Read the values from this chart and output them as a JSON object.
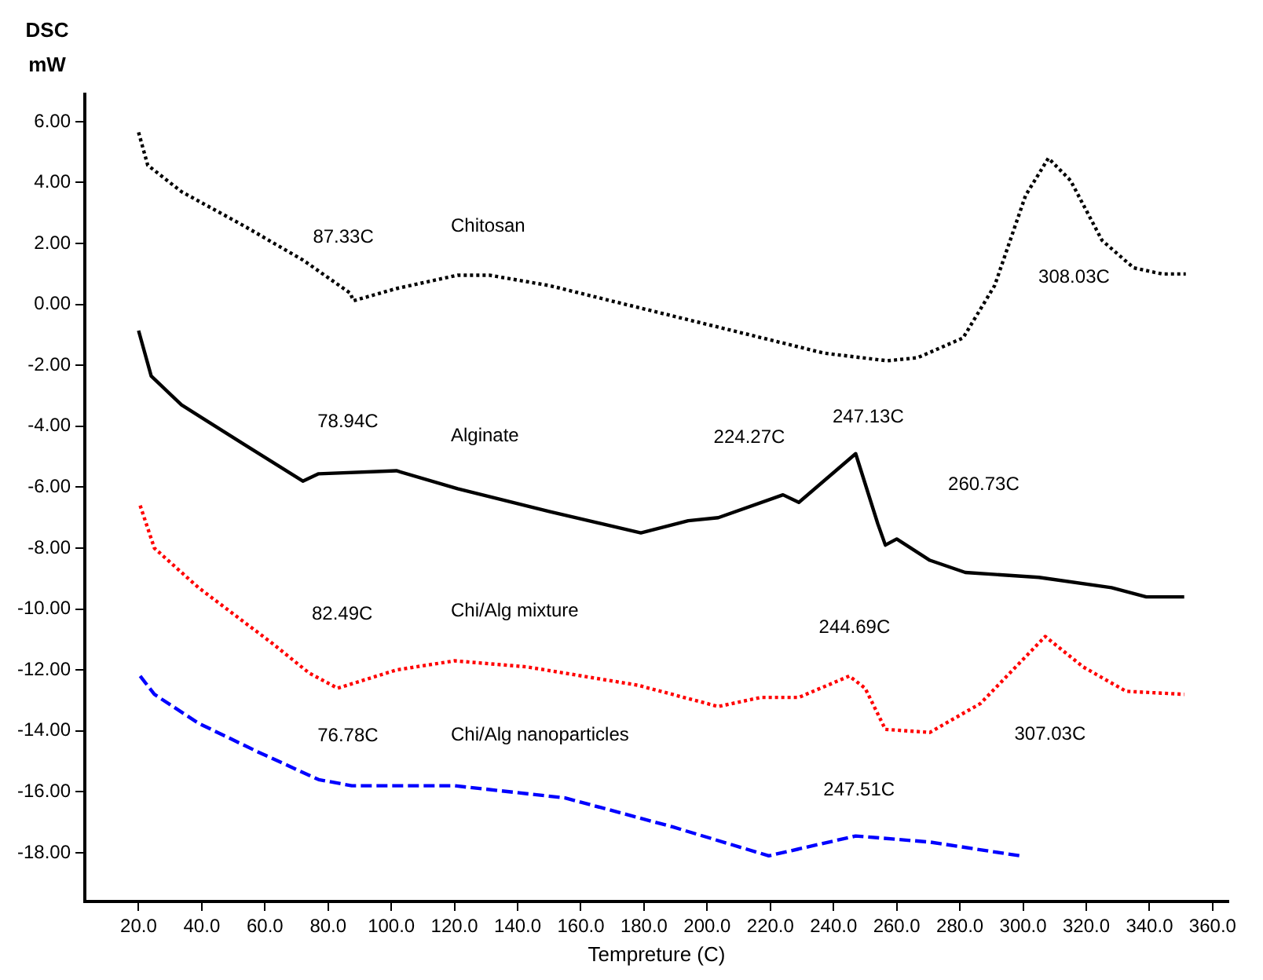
{
  "chart_data": {
    "type": "line",
    "xlabel": "Tempreture (C)",
    "ylabel": "DSC mW",
    "xlim": [
      3,
      365
    ],
    "xticks": [
      {
        "value": 20,
        "label": "20.0"
      },
      {
        "value": 40,
        "label": "40.0"
      },
      {
        "value": 60,
        "label": "60.0"
      },
      {
        "value": 80,
        "label": "80.0"
      },
      {
        "value": 100,
        "label": "100.0"
      },
      {
        "value": 120,
        "label": "120.0"
      },
      {
        "value": 140,
        "label": "140.0"
      },
      {
        "value": 160,
        "label": "160.0"
      },
      {
        "value": 180,
        "label": "180.0"
      },
      {
        "value": 200,
        "label": "200.0"
      },
      {
        "value": 220,
        "label": "220.0"
      },
      {
        "value": 240,
        "label": "240.0"
      },
      {
        "value": 260,
        "label": "260.0"
      },
      {
        "value": 280,
        "label": "280.0"
      },
      {
        "value": 300,
        "label": "300.0"
      },
      {
        "value": 320,
        "label": "320.0"
      },
      {
        "value": 340,
        "label": "340.0"
      },
      {
        "value": 360,
        "label": "360.0"
      }
    ],
    "ylim": [
      -19.6,
      6.9
    ],
    "yticks": [
      {
        "value": 6,
        "label": "6.00"
      },
      {
        "value": 4,
        "label": "4.00"
      },
      {
        "value": 2,
        "label": "2.00"
      },
      {
        "value": 0,
        "label": "0.00"
      },
      {
        "value": -2,
        "label": "-2.00"
      },
      {
        "value": -4,
        "label": "-4.00"
      },
      {
        "value": -6,
        "label": "-6.00"
      },
      {
        "value": -8,
        "label": "-8.00"
      },
      {
        "value": -10,
        "label": "-10.00"
      },
      {
        "value": -12,
        "label": "-12.00"
      },
      {
        "value": -14,
        "label": "-14.00"
      },
      {
        "value": -16,
        "label": "-16.00"
      },
      {
        "value": -18,
        "label": "-18.00"
      }
    ],
    "grid": false,
    "legend": false,
    "marker": "none",
    "series": [
      {
        "name": "Chitosan",
        "color": "#000000",
        "line_style": "dotted",
        "x": [
          20,
          22.9,
          33.6,
          53,
          72,
          87,
          88,
          101.6,
          121,
          131,
          150,
          169.5,
          208,
          237,
          257,
          266.6,
          281,
          291,
          300.8,
          308,
          315,
          325,
          335,
          344,
          351.5
        ],
        "values": [
          5.65,
          4.57,
          3.7,
          2.6,
          1.46,
          0.37,
          0.12,
          0.52,
          0.96,
          0.96,
          0.62,
          0.12,
          -0.86,
          -1.6,
          -1.85,
          -1.75,
          -1.1,
          0.62,
          3.58,
          4.8,
          4.07,
          2.1,
          1.2,
          1.0,
          1.0
        ]
      },
      {
        "name": "Alginate",
        "color": "#000000",
        "line_style": "solid",
        "x": [
          20,
          24,
          33.6,
          53,
          72,
          77,
          101.6,
          121,
          150,
          179,
          194,
          203.5,
          224,
          229,
          247,
          254,
          256.4,
          260,
          270.5,
          281.7,
          305,
          328,
          339,
          351
        ],
        "values": [
          -0.86,
          -2.35,
          -3.3,
          -4.57,
          -5.8,
          -5.56,
          -5.46,
          -6.05,
          -6.8,
          -7.5,
          -7.1,
          -7.0,
          -6.25,
          -6.5,
          -4.9,
          -7.2,
          -7.9,
          -7.7,
          -8.4,
          -8.8,
          -8.96,
          -9.3,
          -9.6,
          -9.6
        ]
      },
      {
        "name": "Chi/Alg mixture",
        "color": "#ff0000",
        "line_style": "dotted",
        "x": [
          20.5,
          25,
          39,
          62,
          74,
          83,
          101.6,
          120,
          143,
          178,
          203.5,
          217,
          229,
          245,
          250,
          256.4,
          270.5,
          286.5,
          307,
          319,
          332.6,
          351
        ],
        "values": [
          -6.6,
          -8.0,
          -9.3,
          -11.1,
          -12.1,
          -12.6,
          -12.0,
          -11.7,
          -11.9,
          -12.5,
          -13.2,
          -12.9,
          -12.9,
          -12.2,
          -12.6,
          -13.95,
          -14.05,
          -13.1,
          -10.9,
          -11.9,
          -12.7,
          -12.8
        ]
      },
      {
        "name": "Chi/Alg nanoparticles",
        "color": "#0000ff",
        "line_style": "dashed",
        "x": [
          20.5,
          25,
          39,
          58,
          77,
          87.5,
          120,
          155,
          189,
          219.5,
          247,
          270.5,
          299
        ],
        "values": [
          -12.2,
          -12.8,
          -13.75,
          -14.7,
          -15.6,
          -15.8,
          -15.8,
          -16.2,
          -17.15,
          -18.1,
          -17.45,
          -17.65,
          -18.1
        ]
      }
    ],
    "annotations": [
      "87.33C",
      "308.03C",
      "78.94C",
      "224.27C",
      "247.13C",
      "260.73C",
      "82.49C",
      "244.69C",
      "307.03C",
      "76.78C",
      "247.51C"
    ]
  }
}
